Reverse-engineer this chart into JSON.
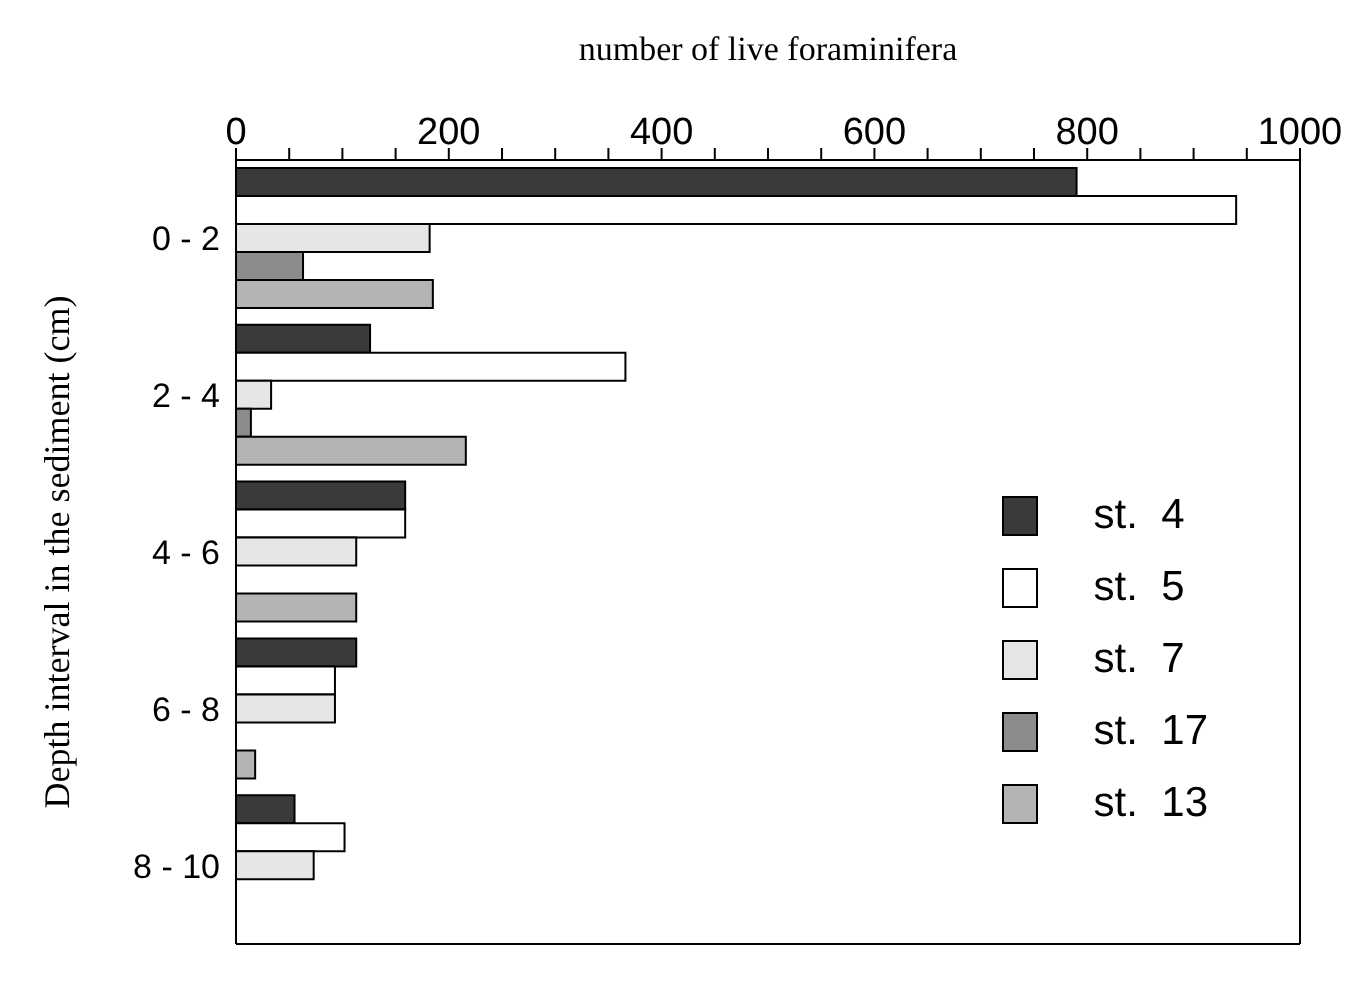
{
  "chart_data": {
    "type": "bar",
    "orientation": "horizontal",
    "xlabel": "number of live foraminifera",
    "ylabel": "Depth interval in the sediment (cm)",
    "categories": [
      "0 - 2",
      "2 - 4",
      "4 - 6",
      "6 - 8",
      "8 - 10"
    ],
    "series": [
      {
        "name": "st.  4",
        "color": "#3a3a3a",
        "values": [
          790,
          126,
          159,
          113,
          55
        ]
      },
      {
        "name": "st.  5",
        "color": "#ffffff",
        "values": [
          940,
          366,
          159,
          93,
          102
        ]
      },
      {
        "name": "st.  7",
        "color": "#e6e6e6",
        "values": [
          182,
          33,
          113,
          93,
          73
        ]
      },
      {
        "name": "st.  17",
        "color": "#8c8c8c",
        "values": [
          63,
          14,
          null,
          null,
          null
        ]
      },
      {
        "name": "st.  13",
        "color": "#b4b4b4",
        "values": [
          185,
          216,
          113,
          18,
          null
        ]
      }
    ],
    "xlim": [
      0,
      1000
    ],
    "xticks": [
      0,
      {
        "value": 50,
        "label": null
      },
      200,
      {
        "value": 100,
        "label": null
      },
      {
        "value": 150,
        "label": null
      },
      {
        "value": 250,
        "label": null
      },
      {
        "value": 300,
        "label": null
      },
      {
        "value": 350,
        "label": null
      },
      400,
      {
        "value": 450,
        "label": null
      },
      {
        "value": 500,
        "label": null
      },
      {
        "value": 550,
        "label": null
      },
      600,
      {
        "value": 650,
        "label": null
      },
      {
        "value": 700,
        "label": null
      },
      {
        "value": 750,
        "label": null
      },
      800,
      {
        "value": 850,
        "label": null
      },
      {
        "value": 900,
        "label": null
      },
      {
        "value": 950,
        "label": null
      },
      1000
    ],
    "legend": "bottom right",
    "grid": false
  }
}
